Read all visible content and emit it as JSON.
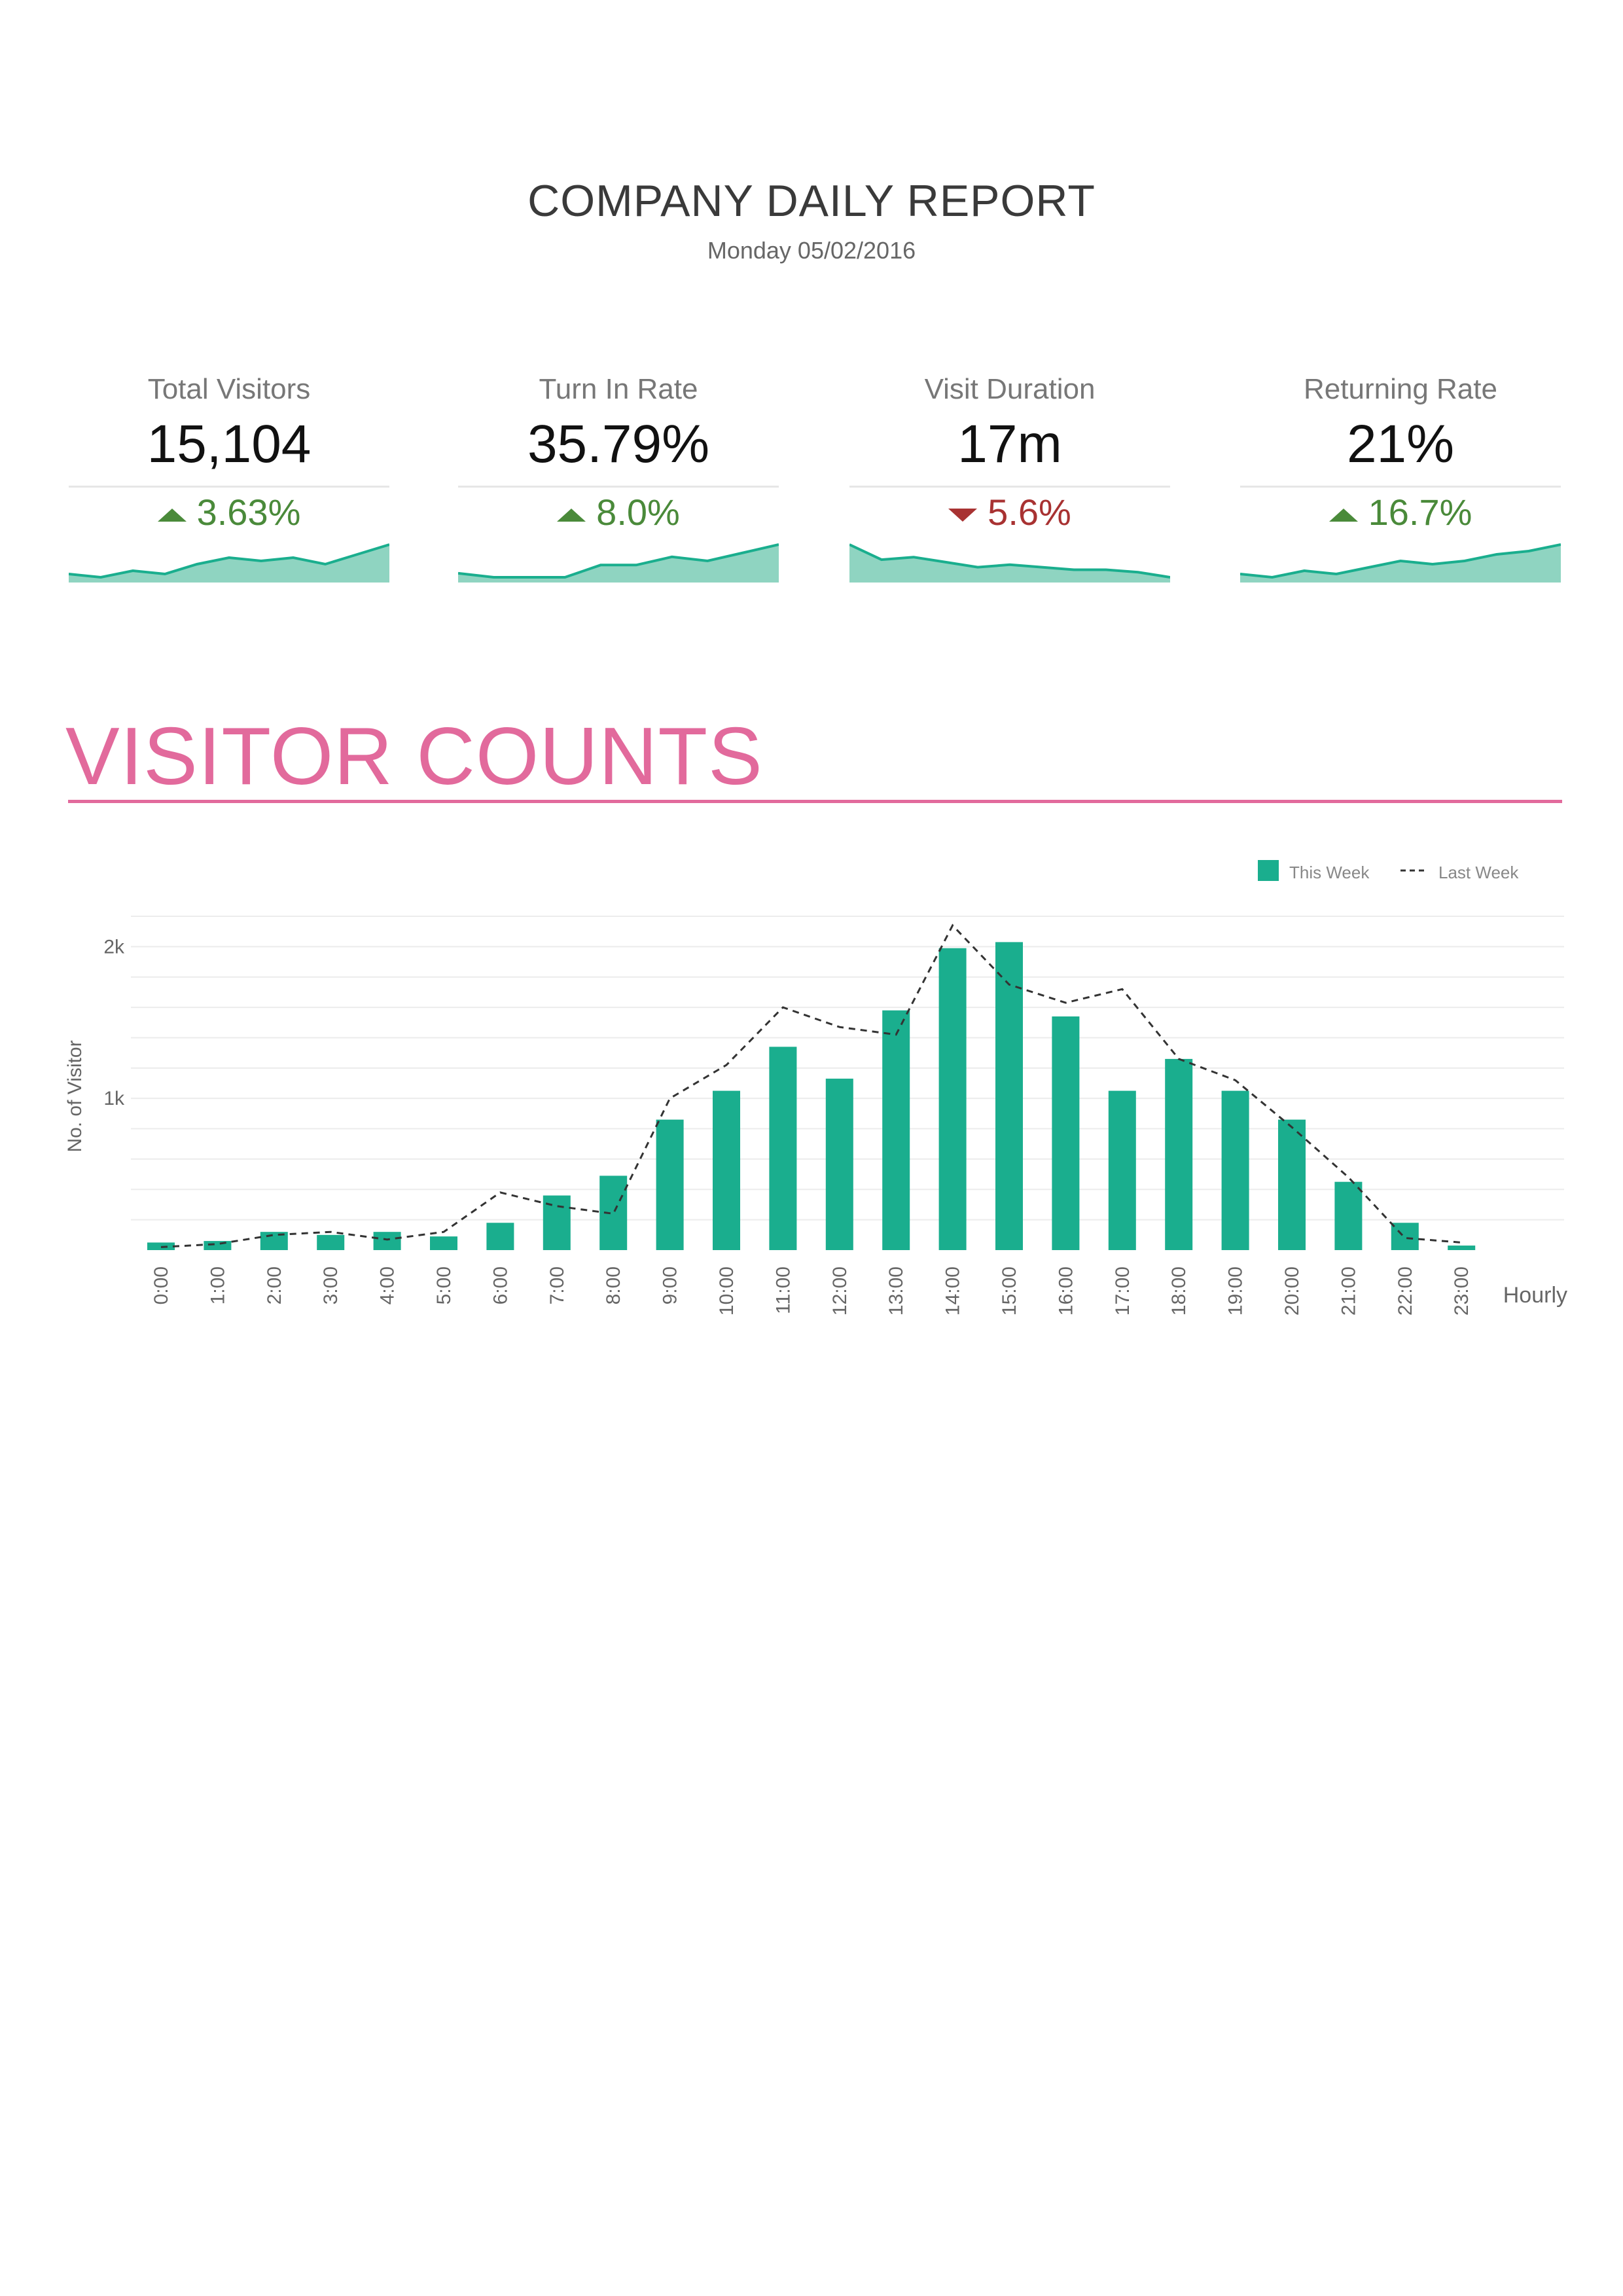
{
  "report": {
    "title": "COMPANY DAILY REPORT",
    "date": "Monday 05/02/2016"
  },
  "kpis": [
    {
      "label": "Total Visitors",
      "value": "15,104",
      "change": "3.63%",
      "direction": "up",
      "spark": [
        3,
        2,
        4,
        3,
        6,
        8,
        7,
        8,
        6,
        9,
        12
      ]
    },
    {
      "label": "Turn In Rate",
      "value": "35.79%",
      "change": "8.0%",
      "direction": "up",
      "spark": [
        3,
        2,
        2,
        2,
        5,
        5,
        7,
        6,
        8,
        10
      ]
    },
    {
      "label": "Visit Duration",
      "value": "17m",
      "change": "5.6%",
      "direction": "down",
      "spark": [
        14,
        8,
        9,
        7,
        5,
        6,
        5,
        4,
        4,
        3,
        1
      ]
    },
    {
      "label": "Returning Rate",
      "value": "21%",
      "change": "16.7%",
      "direction": "up",
      "spark": [
        3,
        2,
        4,
        3,
        5,
        7,
        6,
        7,
        9,
        10,
        12
      ]
    }
  ],
  "colors": {
    "accent": "#1aae8e",
    "accent_fill": "#8fd4c1",
    "section": "#e26a9c",
    "positive": "#4a8a3a",
    "negative": "#a83232"
  },
  "section": {
    "title": "VISITOR COUNTS"
  },
  "chart_data": {
    "type": "bar",
    "xlabel": "Hourly",
    "ylabel": "No. of Visitor",
    "yticks": [
      {
        "value": 1000,
        "label": "1k"
      },
      {
        "value": 2000,
        "label": "2k"
      }
    ],
    "ylim": [
      0,
      2200
    ],
    "grid": true,
    "legend_position": "top-right",
    "categories": [
      "0:00",
      "1:00",
      "2:00",
      "3:00",
      "4:00",
      "5:00",
      "6:00",
      "7:00",
      "8:00",
      "9:00",
      "10:00",
      "11:00",
      "12:00",
      "13:00",
      "14:00",
      "15:00",
      "16:00",
      "17:00",
      "18:00",
      "19:00",
      "20:00",
      "21:00",
      "22:00",
      "23:00"
    ],
    "series": [
      {
        "name": "This Week",
        "kind": "bar",
        "values": [
          50,
          60,
          120,
          100,
          120,
          90,
          180,
          360,
          490,
          860,
          1050,
          1340,
          1130,
          1580,
          1990,
          2030,
          1540,
          1050,
          1260,
          1050,
          860,
          450,
          180,
          30
        ]
      },
      {
        "name": "Last Week",
        "kind": "dashed-line",
        "values": [
          20,
          40,
          100,
          120,
          70,
          120,
          380,
          290,
          240,
          1000,
          1220,
          1600,
          1470,
          1420,
          2140,
          1750,
          1630,
          1720,
          1260,
          1120,
          810,
          480,
          80,
          50
        ]
      }
    ]
  }
}
